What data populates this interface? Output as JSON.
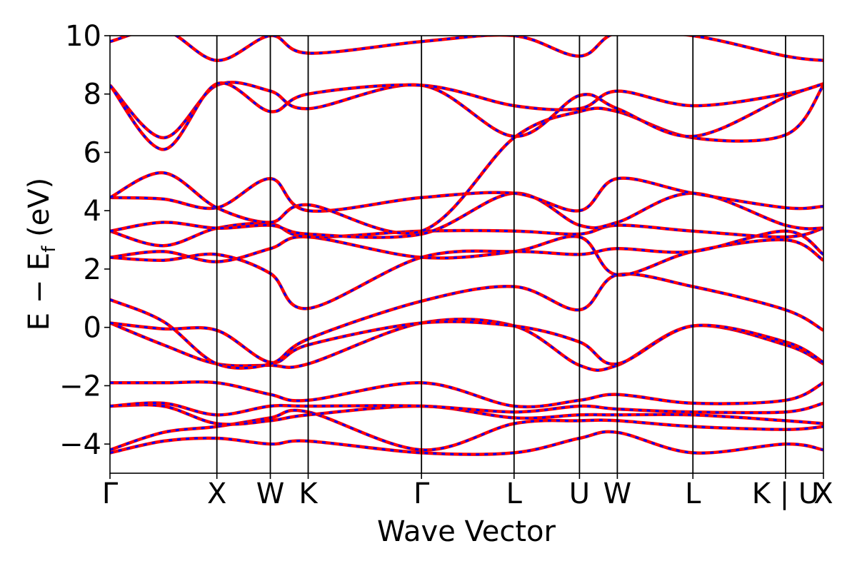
{
  "chart_data": {
    "type": "line",
    "title": "",
    "xlabel": "Wave Vector",
    "ylabel_main": "E − E",
    "ylabel_sub": "f",
    "ylabel_unit": " (eV)",
    "ylim": [
      -5,
      10
    ],
    "yticks": [
      -4,
      -2,
      0,
      2,
      4,
      6,
      8,
      10
    ],
    "ytick_labels": [
      "−4",
      "−2",
      "0",
      "2",
      "4",
      "6",
      "8",
      "10"
    ],
    "kpath": [
      {
        "label": "Γ",
        "x": 0.0
      },
      {
        "label": "X",
        "x": 1.0
      },
      {
        "label": "W",
        "x": 1.5
      },
      {
        "label": "K",
        "x": 1.854
      },
      {
        "label": "Γ",
        "x": 2.914
      },
      {
        "label": "L",
        "x": 3.78
      },
      {
        "label": "U",
        "x": 4.392
      },
      {
        "label": "W",
        "x": 4.746
      },
      {
        "label": "L",
        "x": 5.453
      },
      {
        "label": "K | U",
        "x": 6.32
      },
      {
        "label": "X",
        "x": 6.674
      }
    ],
    "colors": {
      "series_a": "#ff0000",
      "series_b": "#0000ff",
      "kline": "#000000"
    },
    "grid": false,
    "bands": [
      {
        "x": [
          0,
          0.5,
          1.0,
          1.5,
          1.854,
          2.914,
          3.78,
          4.392,
          4.746,
          5.453,
          6.32,
          6.674
        ],
        "y": [
          -4.3,
          -3.9,
          -3.8,
          -4.0,
          -3.9,
          -4.3,
          -4.3,
          -3.8,
          -3.6,
          -4.3,
          -4.0,
          -4.2
        ]
      },
      {
        "x": [
          0,
          0.5,
          1.0,
          1.5,
          1.854,
          2.914,
          3.78,
          4.392,
          4.746,
          5.453,
          6.32,
          6.674
        ],
        "y": [
          -4.2,
          -3.6,
          -3.4,
          -3.1,
          -2.9,
          -4.2,
          -3.3,
          -3.2,
          -3.2,
          -3.4,
          -3.5,
          -3.4
        ]
      },
      {
        "x": [
          0,
          0.5,
          1.0,
          1.5,
          1.854,
          2.914,
          3.78,
          4.392,
          4.746,
          5.453,
          6.32,
          6.674
        ],
        "y": [
          -2.7,
          -2.7,
          -3.3,
          -3.2,
          -3.0,
          -2.7,
          -3.1,
          -3.0,
          -3.0,
          -3.0,
          -3.2,
          -3.3
        ]
      },
      {
        "x": [
          0,
          0.5,
          1.0,
          1.5,
          1.854,
          2.914,
          3.78,
          4.392,
          4.746,
          5.453,
          6.32,
          6.674
        ],
        "y": [
          -2.7,
          -2.6,
          -3.0,
          -2.7,
          -2.7,
          -2.7,
          -2.9,
          -2.7,
          -2.8,
          -2.9,
          -2.9,
          -2.6
        ]
      },
      {
        "x": [
          0,
          0.5,
          1.0,
          1.5,
          1.854,
          2.914,
          3.78,
          4.392,
          4.746,
          5.453,
          6.32,
          6.674
        ],
        "y": [
          -1.9,
          -1.9,
          -1.9,
          -2.3,
          -2.5,
          -1.9,
          -2.7,
          -2.5,
          -2.3,
          -2.6,
          -2.5,
          -1.9
        ]
      },
      {
        "x": [
          0,
          0.5,
          1.0,
          1.5,
          1.854,
          2.914,
          3.78,
          4.392,
          4.746,
          5.453,
          6.32,
          6.674
        ],
        "y": [
          0.15,
          -0.6,
          -1.25,
          -1.3,
          -1.25,
          0.15,
          0.05,
          -1.3,
          -1.3,
          0.05,
          -0.6,
          -1.25
        ]
      },
      {
        "x": [
          0,
          0.5,
          1.0,
          1.5,
          1.854,
          2.914,
          3.78,
          4.392,
          4.746,
          5.453,
          6.32,
          6.674
        ],
        "y": [
          0.15,
          -0.05,
          -0.1,
          -1.2,
          -0.6,
          0.15,
          0.05,
          -0.5,
          -1.25,
          0.05,
          -0.5,
          -1.2
        ]
      },
      {
        "x": [
          0,
          0.5,
          1.0,
          1.5,
          1.854,
          2.914,
          3.78,
          4.392,
          4.746,
          5.453,
          6.32,
          6.674
        ],
        "y": [
          0.95,
          0.2,
          -1.25,
          -1.25,
          -0.4,
          0.9,
          1.4,
          0.6,
          1.8,
          1.4,
          0.6,
          -0.1
        ]
      },
      {
        "x": [
          0,
          0.5,
          1.0,
          1.5,
          1.854,
          2.914,
          3.78,
          4.392,
          4.746,
          5.453,
          6.32,
          6.674
        ],
        "y": [
          2.4,
          2.6,
          2.25,
          2.7,
          3.1,
          2.4,
          2.6,
          3.1,
          1.8,
          2.6,
          3.0,
          2.3
        ]
      },
      {
        "x": [
          0,
          0.5,
          1.0,
          1.5,
          1.854,
          2.914,
          3.78,
          4.392,
          4.746,
          5.453,
          6.32,
          6.674
        ],
        "y": [
          2.4,
          2.3,
          2.5,
          1.85,
          0.65,
          2.4,
          2.6,
          2.5,
          2.7,
          2.6,
          3.3,
          2.5
        ]
      },
      {
        "x": [
          0,
          0.5,
          1.0,
          1.5,
          1.854,
          2.914,
          3.78,
          4.392,
          4.746,
          5.453,
          6.32,
          6.674
        ],
        "y": [
          3.3,
          2.8,
          3.4,
          3.55,
          3.1,
          3.3,
          3.3,
          3.2,
          3.5,
          3.3,
          3.1,
          3.4
        ]
      },
      {
        "x": [
          0,
          0.5,
          1.0,
          1.5,
          1.854,
          2.914,
          3.78,
          4.392,
          4.746,
          5.453,
          6.32,
          6.674
        ],
        "y": [
          3.3,
          3.6,
          3.4,
          3.5,
          3.2,
          3.2,
          4.6,
          3.5,
          3.6,
          4.6,
          3.5,
          3.4
        ]
      },
      {
        "x": [
          0,
          0.5,
          1.0,
          1.5,
          1.854,
          2.914,
          3.78,
          4.392,
          4.746,
          5.453,
          6.32,
          6.674
        ],
        "y": [
          4.45,
          4.4,
          4.1,
          5.1,
          4.0,
          4.45,
          4.6,
          4.0,
          5.1,
          4.6,
          4.1,
          4.15
        ]
      },
      {
        "x": [
          0,
          0.5,
          1.0,
          1.5,
          1.854,
          2.914,
          3.78,
          4.392,
          4.746,
          5.453,
          6.32,
          6.674
        ],
        "y": [
          4.45,
          5.3,
          4.1,
          3.6,
          4.2,
          3.3,
          6.5,
          7.4,
          7.4,
          6.5,
          6.6,
          8.3
        ]
      },
      {
        "x": [
          0,
          0.5,
          1.0,
          1.5,
          1.854,
          2.914,
          3.78,
          4.392,
          4.746,
          5.453,
          6.32,
          6.674
        ],
        "y": [
          8.3,
          6.5,
          8.3,
          8.1,
          7.5,
          8.3,
          6.55,
          7.95,
          7.5,
          6.55,
          7.9,
          8.35
        ]
      },
      {
        "x": [
          0,
          0.5,
          1.0,
          1.5,
          1.854,
          2.914,
          3.78,
          4.392,
          4.746,
          5.453,
          6.32,
          6.674
        ],
        "y": [
          8.3,
          6.1,
          8.35,
          7.4,
          8.0,
          8.3,
          7.6,
          7.5,
          8.1,
          7.6,
          8.0,
          8.35
        ]
      },
      {
        "x": [
          0,
          0.5,
          1.0,
          1.5,
          1.854,
          2.914,
          3.78,
          4.392,
          4.746,
          5.453,
          6.32,
          6.674
        ],
        "y": [
          9.8,
          10.2,
          9.15,
          10.0,
          9.4,
          9.8,
          10.0,
          9.3,
          10.1,
          10.0,
          9.3,
          9.15
        ]
      }
    ]
  }
}
